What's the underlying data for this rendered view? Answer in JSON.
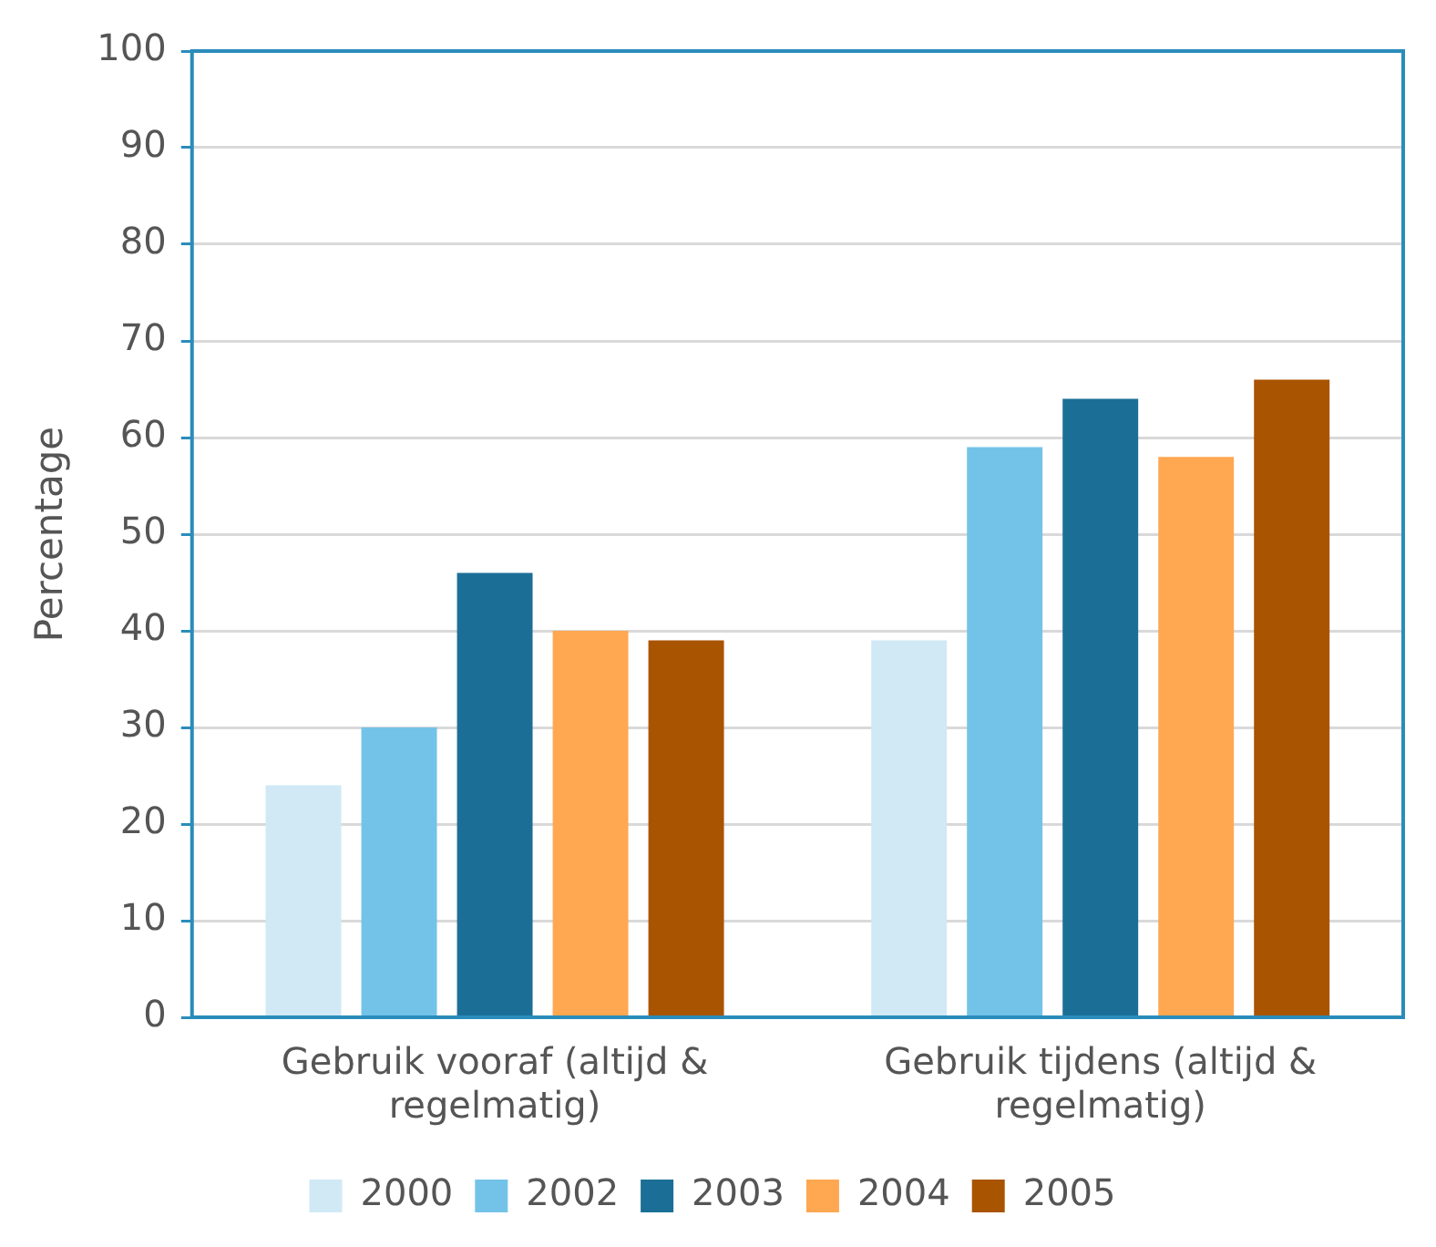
{
  "chart_data": {
    "type": "bar",
    "ylabel": "Percentage",
    "categories": [
      "Gebruik vooraf (altijd & regelmatig)",
      "Gebruik tijdens (altijd & regelmatig)"
    ],
    "series": [
      {
        "name": "2000",
        "color": "#d0e9f5",
        "values": [
          24,
          39
        ]
      },
      {
        "name": "2002",
        "color": "#73c3e8",
        "values": [
          30,
          59
        ]
      },
      {
        "name": "2003",
        "color": "#1b6f96",
        "values": [
          46,
          64
        ]
      },
      {
        "name": "2004",
        "color": "#ffa851",
        "values": [
          40,
          58
        ]
      },
      {
        "name": "2005",
        "color": "#a95400",
        "values": [
          39,
          66
        ]
      }
    ],
    "ylim": [
      0,
      100
    ],
    "yticks": [
      0,
      10,
      20,
      30,
      40,
      50,
      60,
      70,
      80,
      90,
      100
    ],
    "grid": "y",
    "legend": "bottom"
  }
}
